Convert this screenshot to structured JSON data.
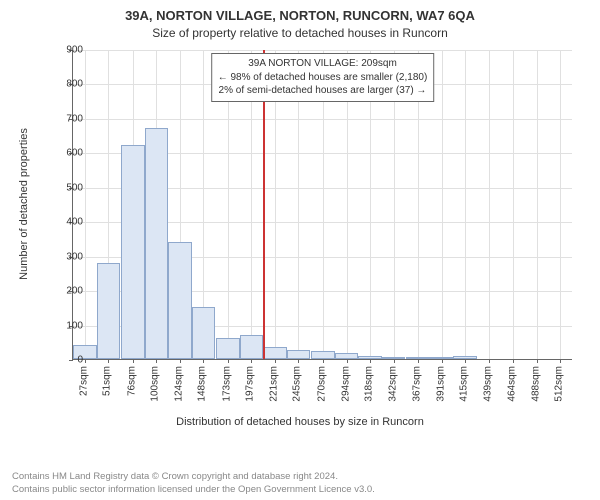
{
  "title_line1": "39A, NORTON VILLAGE, NORTON, RUNCORN, WA7 6QA",
  "title_line2": "Size of property relative to detached houses in Runcorn",
  "y_axis_label": "Number of detached properties",
  "x_axis_label": "Distribution of detached houses by size in Runcorn",
  "footer_line1": "Contains HM Land Registry data © Crown copyright and database right 2024.",
  "footer_line2": "Contains public sector information licensed under the Open Government Licence v3.0.",
  "annotation": {
    "line1": "39A NORTON VILLAGE: 209sqm",
    "line2": "← 98% of detached houses are smaller (2,180)",
    "line3": "2% of semi-detached houses are larger (37) →"
  },
  "chart": {
    "type": "histogram",
    "background_color": "#ffffff",
    "grid_color": "#e0e0e0",
    "axis_color": "#666666",
    "bar_fill": "#dce6f4",
    "bar_border": "#8fa8cc",
    "marker_color": "#cc3333",
    "marker_x": 209,
    "xlim": [
      15,
      525
    ],
    "ylim": [
      0,
      900
    ],
    "y_ticks": [
      0,
      100,
      200,
      300,
      400,
      500,
      600,
      700,
      800,
      900
    ],
    "x_ticks": [
      27,
      51,
      76,
      100,
      124,
      148,
      173,
      197,
      221,
      245,
      270,
      294,
      318,
      342,
      367,
      391,
      415,
      439,
      464,
      488,
      512
    ],
    "x_tick_suffix": "sqm",
    "bar_centers": [
      27,
      51,
      76,
      100,
      124,
      148,
      173,
      197,
      221,
      245,
      270,
      294,
      318,
      342,
      367,
      391,
      415
    ],
    "bar_values": [
      42,
      280,
      620,
      670,
      340,
      150,
      60,
      70,
      35,
      25,
      22,
      18,
      10,
      5,
      4,
      3,
      8
    ],
    "bar_step": 24
  }
}
